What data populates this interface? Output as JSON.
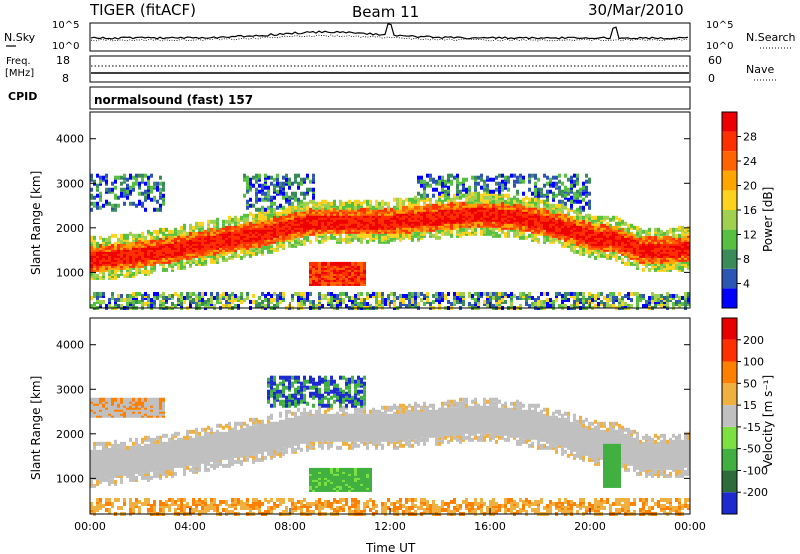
{
  "header": {
    "title": "TIGER (fitACF)",
    "beam": "Beam 11",
    "date": "30/Mar/2010"
  },
  "summary": {
    "nsky_label": "N.Sky",
    "nsearch_label": "N.Search",
    "noise_ticks": [
      "10^5",
      "10^0"
    ],
    "freq_label_1": "Freq.",
    "freq_label_2": "[MHz]",
    "freq_ticks": [
      "18",
      "8"
    ],
    "nave_label": "Nave",
    "nave_ticks": [
      "60",
      "0"
    ],
    "cpid_label": "CPID",
    "cpid_value": "normalsound (fast) 157"
  },
  "chart_data": [
    {
      "type": "heatmap",
      "name": "power",
      "ylabel": "Slant Range [km]",
      "yticks": [
        "4000",
        "3000",
        "2000",
        "1000"
      ],
      "ylim": [
        200,
        4600
      ],
      "xlim": [
        0,
        24
      ],
      "colorbar_label": "Power [dB]",
      "colorbar_ticks": [
        "28",
        "24",
        "20",
        "16",
        "12",
        "8",
        "4"
      ],
      "colors": [
        "#0000ff",
        "#2c55b4",
        "#3a8a5a",
        "#56c040",
        "#a0d050",
        "#ffd21e",
        "#ffa500",
        "#ff6400",
        "#ff3000",
        "#ee0000"
      ],
      "band_center_km": [
        1300,
        1350,
        1420,
        1500,
        1600,
        1700,
        1800,
        1900,
        2050,
        2150,
        2150,
        2150,
        2150,
        2200,
        2250,
        2300,
        2300,
        2250,
        2150,
        2000,
        1800,
        1750,
        1500,
        1500,
        1550
      ]
    },
    {
      "type": "heatmap",
      "name": "velocity",
      "ylabel": "Slant Range [km]",
      "yticks": [
        "4000",
        "3000",
        "2000",
        "1000"
      ],
      "ylim": [
        200,
        4600
      ],
      "xlim": [
        0,
        24
      ],
      "xticks": [
        "00:00",
        "04:00",
        "08:00",
        "12:00",
        "16:00",
        "20:00",
        "00:00"
      ],
      "xlabel": "Time UT",
      "colorbar_label": "Velocity [m s⁻¹]",
      "colorbar_ticks": [
        "200",
        "100",
        "50",
        "15",
        "-15",
        "-50",
        "-100",
        "-200"
      ],
      "colors": [
        "#1c2ad0",
        "#2e6b3a",
        "#41b041",
        "#7ce040",
        "#c0c0c0",
        "#f0b040",
        "#ff8000",
        "#ff3000",
        "#e80000"
      ]
    }
  ]
}
